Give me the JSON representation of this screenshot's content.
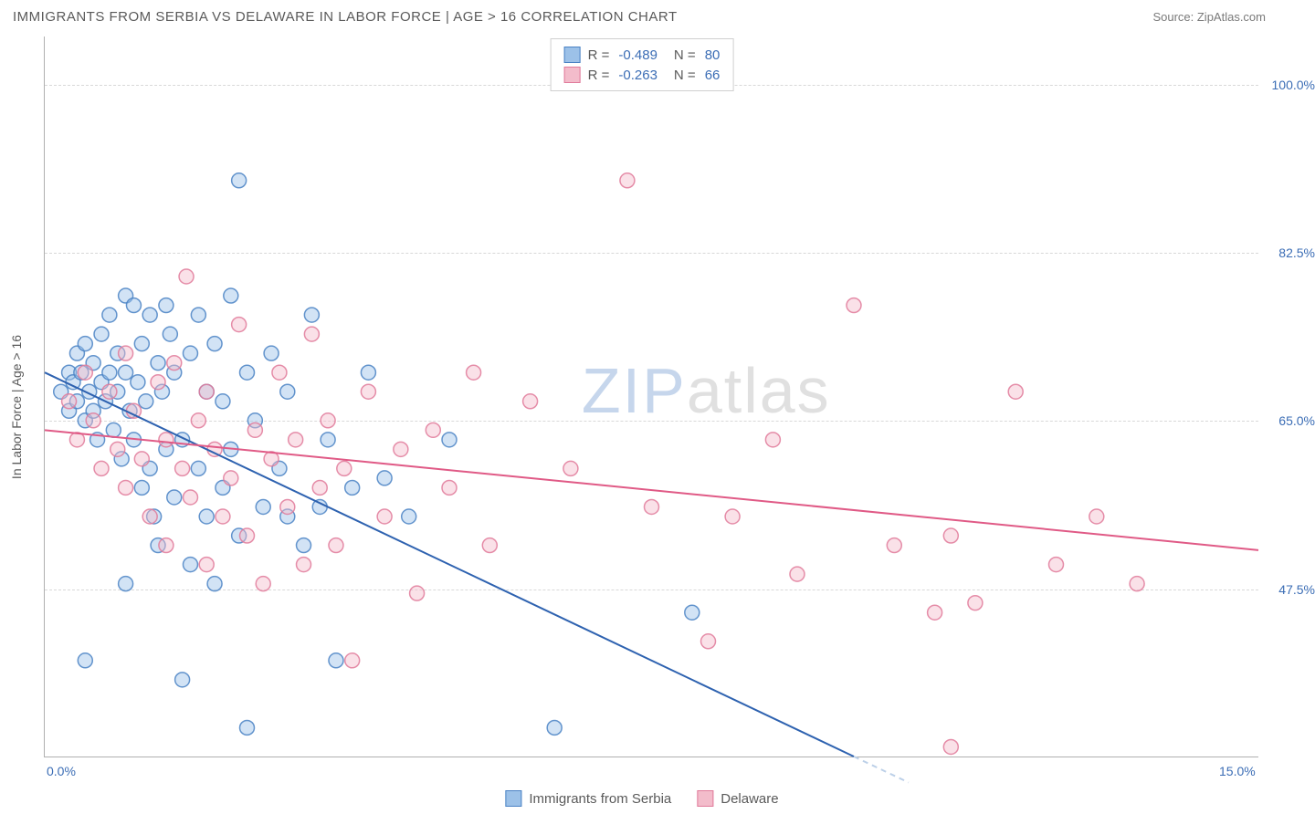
{
  "header": {
    "title": "IMMIGRANTS FROM SERBIA VS DELAWARE IN LABOR FORCE | AGE > 16 CORRELATION CHART",
    "source_label": "Source: ",
    "source_value": "ZipAtlas.com"
  },
  "watermark": {
    "part1": "ZIP",
    "part2": "atlas"
  },
  "chart": {
    "type": "scatter",
    "y_axis_title": "In Labor Force | Age > 16",
    "xlim": [
      0.0,
      15.0
    ],
    "ylim": [
      30.0,
      105.0
    ],
    "x_ticks": [
      {
        "value": 0.0,
        "label": "0.0%"
      },
      {
        "value": 15.0,
        "label": "15.0%"
      }
    ],
    "y_ticks": [
      {
        "value": 47.5,
        "label": "47.5%"
      },
      {
        "value": 65.0,
        "label": "65.0%"
      },
      {
        "value": 82.5,
        "label": "82.5%"
      },
      {
        "value": 100.0,
        "label": "100.0%"
      }
    ],
    "grid_y": [
      47.5,
      65.0,
      82.5,
      100.0
    ],
    "background_color": "#ffffff",
    "grid_color": "#d8d8d8",
    "axis_color": "#b0b0b0",
    "tick_label_color": "#3b6db5",
    "axis_title_color": "#5a5a5a",
    "marker_radius": 8,
    "series": [
      {
        "id": "serbia",
        "label": "Immigrants from Serbia",
        "fill_color": "#9cc1e8",
        "stroke_color": "#4a82c4",
        "trend_color": "#2e62b0",
        "R": -0.489,
        "N": 80,
        "trend_line": {
          "x1": 0.0,
          "y1": 70.0,
          "x2": 10.0,
          "y2": 30.0
        },
        "points": [
          [
            0.2,
            68
          ],
          [
            0.3,
            70
          ],
          [
            0.3,
            66
          ],
          [
            0.35,
            69
          ],
          [
            0.4,
            72
          ],
          [
            0.4,
            67
          ],
          [
            0.45,
            70
          ],
          [
            0.5,
            65
          ],
          [
            0.5,
            73
          ],
          [
            0.55,
            68
          ],
          [
            0.6,
            71
          ],
          [
            0.6,
            66
          ],
          [
            0.65,
            63
          ],
          [
            0.7,
            74
          ],
          [
            0.7,
            69
          ],
          [
            0.75,
            67
          ],
          [
            0.8,
            70
          ],
          [
            0.8,
            76
          ],
          [
            0.85,
            64
          ],
          [
            0.9,
            72
          ],
          [
            0.9,
            68
          ],
          [
            0.95,
            61
          ],
          [
            1.0,
            78
          ],
          [
            1.0,
            70
          ],
          [
            1.05,
            66
          ],
          [
            1.1,
            77
          ],
          [
            1.1,
            63
          ],
          [
            1.15,
            69
          ],
          [
            1.2,
            73
          ],
          [
            1.2,
            58
          ],
          [
            1.25,
            67
          ],
          [
            1.3,
            76
          ],
          [
            1.3,
            60
          ],
          [
            1.35,
            55
          ],
          [
            1.4,
            71
          ],
          [
            1.4,
            52
          ],
          [
            1.45,
            68
          ],
          [
            1.5,
            77
          ],
          [
            1.5,
            62
          ],
          [
            1.55,
            74
          ],
          [
            1.6,
            57
          ],
          [
            1.6,
            70
          ],
          [
            1.7,
            63
          ],
          [
            1.7,
            38
          ],
          [
            1.8,
            72
          ],
          [
            1.8,
            50
          ],
          [
            1.9,
            76
          ],
          [
            1.9,
            60
          ],
          [
            2.0,
            68
          ],
          [
            2.0,
            55
          ],
          [
            2.1,
            73
          ],
          [
            2.1,
            48
          ],
          [
            2.2,
            67
          ],
          [
            2.2,
            58
          ],
          [
            2.3,
            78
          ],
          [
            2.3,
            62
          ],
          [
            2.4,
            90
          ],
          [
            2.4,
            53
          ],
          [
            2.5,
            70
          ],
          [
            2.5,
            33
          ],
          [
            2.6,
            65
          ],
          [
            2.7,
            56
          ],
          [
            2.8,
            72
          ],
          [
            2.9,
            60
          ],
          [
            3.0,
            55
          ],
          [
            3.0,
            68
          ],
          [
            3.2,
            52
          ],
          [
            3.3,
            76
          ],
          [
            3.4,
            56
          ],
          [
            3.5,
            63
          ],
          [
            3.6,
            40
          ],
          [
            3.8,
            58
          ],
          [
            4.0,
            70
          ],
          [
            4.2,
            59
          ],
          [
            4.5,
            55
          ],
          [
            5.0,
            63
          ],
          [
            6.3,
            33
          ],
          [
            8.0,
            45
          ],
          [
            0.5,
            40
          ],
          [
            1.0,
            48
          ]
        ]
      },
      {
        "id": "delaware",
        "label": "Delaware",
        "fill_color": "#f3bccb",
        "stroke_color": "#e07a9a",
        "trend_color": "#e05a86",
        "R": -0.263,
        "N": 66,
        "trend_line": {
          "x1": 0.0,
          "y1": 64.0,
          "x2": 15.0,
          "y2": 51.5
        },
        "points": [
          [
            0.3,
            67
          ],
          [
            0.4,
            63
          ],
          [
            0.5,
            70
          ],
          [
            0.6,
            65
          ],
          [
            0.7,
            60
          ],
          [
            0.8,
            68
          ],
          [
            0.9,
            62
          ],
          [
            1.0,
            72
          ],
          [
            1.0,
            58
          ],
          [
            1.1,
            66
          ],
          [
            1.2,
            61
          ],
          [
            1.3,
            55
          ],
          [
            1.4,
            69
          ],
          [
            1.5,
            63
          ],
          [
            1.5,
            52
          ],
          [
            1.6,
            71
          ],
          [
            1.7,
            60
          ],
          [
            1.75,
            80
          ],
          [
            1.8,
            57
          ],
          [
            1.9,
            65
          ],
          [
            2.0,
            50
          ],
          [
            2.0,
            68
          ],
          [
            2.1,
            62
          ],
          [
            2.2,
            55
          ],
          [
            2.3,
            59
          ],
          [
            2.4,
            75
          ],
          [
            2.5,
            53
          ],
          [
            2.6,
            64
          ],
          [
            2.7,
            48
          ],
          [
            2.8,
            61
          ],
          [
            2.9,
            70
          ],
          [
            3.0,
            56
          ],
          [
            3.1,
            63
          ],
          [
            3.2,
            50
          ],
          [
            3.3,
            74
          ],
          [
            3.4,
            58
          ],
          [
            3.5,
            65
          ],
          [
            3.6,
            52
          ],
          [
            3.7,
            60
          ],
          [
            3.8,
            40
          ],
          [
            4.0,
            68
          ],
          [
            4.2,
            55
          ],
          [
            4.4,
            62
          ],
          [
            4.6,
            47
          ],
          [
            4.8,
            64
          ],
          [
            5.0,
            58
          ],
          [
            5.3,
            70
          ],
          [
            5.5,
            52
          ],
          [
            6.0,
            67
          ],
          [
            6.5,
            60
          ],
          [
            7.2,
            90
          ],
          [
            7.5,
            56
          ],
          [
            8.2,
            42
          ],
          [
            8.5,
            55
          ],
          [
            9.0,
            63
          ],
          [
            9.3,
            49
          ],
          [
            10.0,
            77
          ],
          [
            10.5,
            52
          ],
          [
            11.0,
            45
          ],
          [
            11.2,
            53
          ],
          [
            11.2,
            31
          ],
          [
            11.5,
            46
          ],
          [
            12.0,
            68
          ],
          [
            12.5,
            50
          ],
          [
            13.0,
            55
          ],
          [
            13.5,
            48
          ]
        ]
      }
    ],
    "legend_top": {
      "r_label": "R =",
      "n_label": "N ="
    },
    "legend_bottom_labels": [
      "Immigrants from Serbia",
      "Delaware"
    ]
  }
}
